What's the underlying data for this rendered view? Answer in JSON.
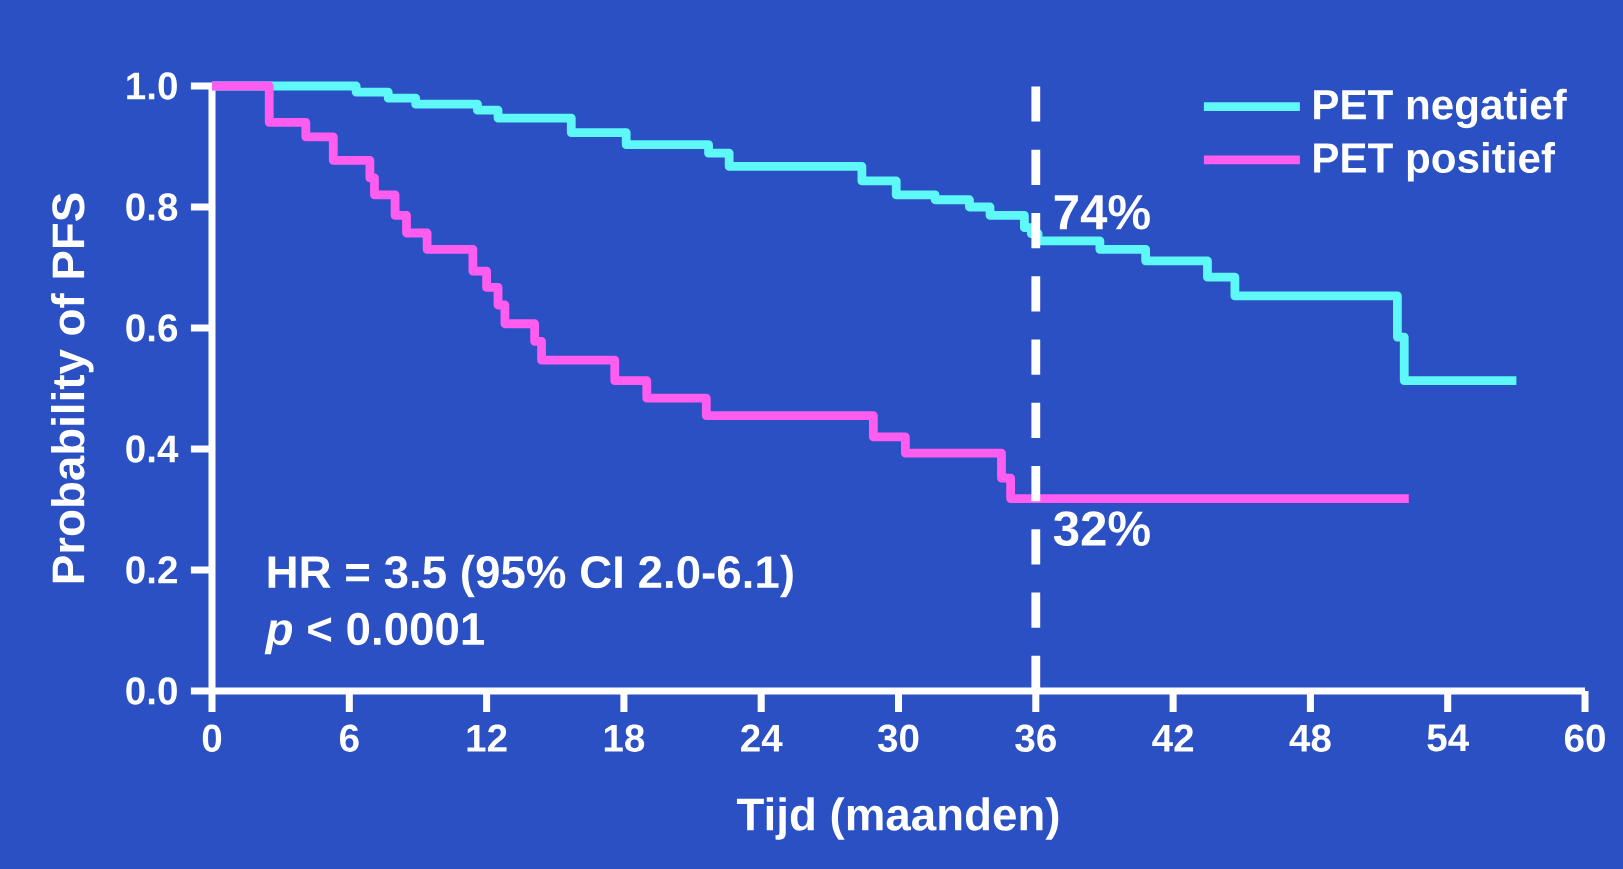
{
  "chart_data": {
    "type": "step",
    "xlabel": "Tijd (maanden)",
    "ylabel": "Probability of PFS",
    "xlim": [
      0,
      60
    ],
    "ylim": [
      0,
      1
    ],
    "xticks": [
      0,
      6,
      12,
      18,
      24,
      30,
      36,
      42,
      48,
      54,
      60
    ],
    "yticks": [
      {
        "value": 0,
        "label": "0.0"
      },
      {
        "value": 0.2,
        "label": "0.2"
      },
      {
        "value": 0.4,
        "label": "0.4"
      },
      {
        "value": 0.6,
        "label": "0.6"
      },
      {
        "value": 0.8,
        "label": "0.8"
      },
      {
        "value": 1,
        "label": "1.0"
      }
    ],
    "series": [
      {
        "name": "PET negatief",
        "color": "#5ff8f8",
        "x": [
          0,
          6.3,
          7.7,
          8.9,
          11.6,
          12.5,
          15.7,
          18.1,
          21.7,
          22.6,
          28.4,
          29.9,
          31.6,
          33.1,
          34.0,
          35.5,
          35.8,
          36.1,
          38.8,
          40.8,
          43.5,
          44.7,
          51.8,
          52.1,
          57.0
        ],
        "values": [
          1.0,
          0.99,
          0.98,
          0.97,
          0.96,
          0.947,
          0.923,
          0.903,
          0.889,
          0.867,
          0.843,
          0.82,
          0.812,
          0.8,
          0.786,
          0.766,
          0.756,
          0.744,
          0.73,
          0.711,
          0.684,
          0.653,
          0.585,
          0.513,
          0.513
        ]
      },
      {
        "name": "PET positief",
        "color": "#ff5cf0",
        "x": [
          0,
          2.5,
          4.1,
          5.3,
          6.9,
          7.1,
          8.0,
          8.5,
          9.4,
          11.4,
          12.0,
          12.5,
          12.8,
          14.1,
          14.4,
          17.6,
          19.0,
          21.6,
          28.9,
          30.3,
          34.5,
          34.9,
          52.3
        ],
        "values": [
          1.0,
          0.94,
          0.916,
          0.877,
          0.848,
          0.82,
          0.786,
          0.757,
          0.73,
          0.694,
          0.667,
          0.638,
          0.607,
          0.578,
          0.547,
          0.513,
          0.484,
          0.455,
          0.42,
          0.393,
          0.352,
          0.318,
          0.318
        ]
      }
    ],
    "ref_lines": [
      {
        "axis": "x",
        "value": 36,
        "color": "#ffffff",
        "line_style": "dashed"
      }
    ],
    "annotations": [
      {
        "text": "74%",
        "x": 36,
        "y": 0.74
      },
      {
        "text": "32%",
        "x": 36,
        "y": 0.32
      },
      "HR = 3.5 (95% CI 2.0-6.1)",
      "*p* < 0.0001"
    ],
    "legend": "top right",
    "grid": false,
    "line_style": "solid",
    "marker": "none"
  }
}
